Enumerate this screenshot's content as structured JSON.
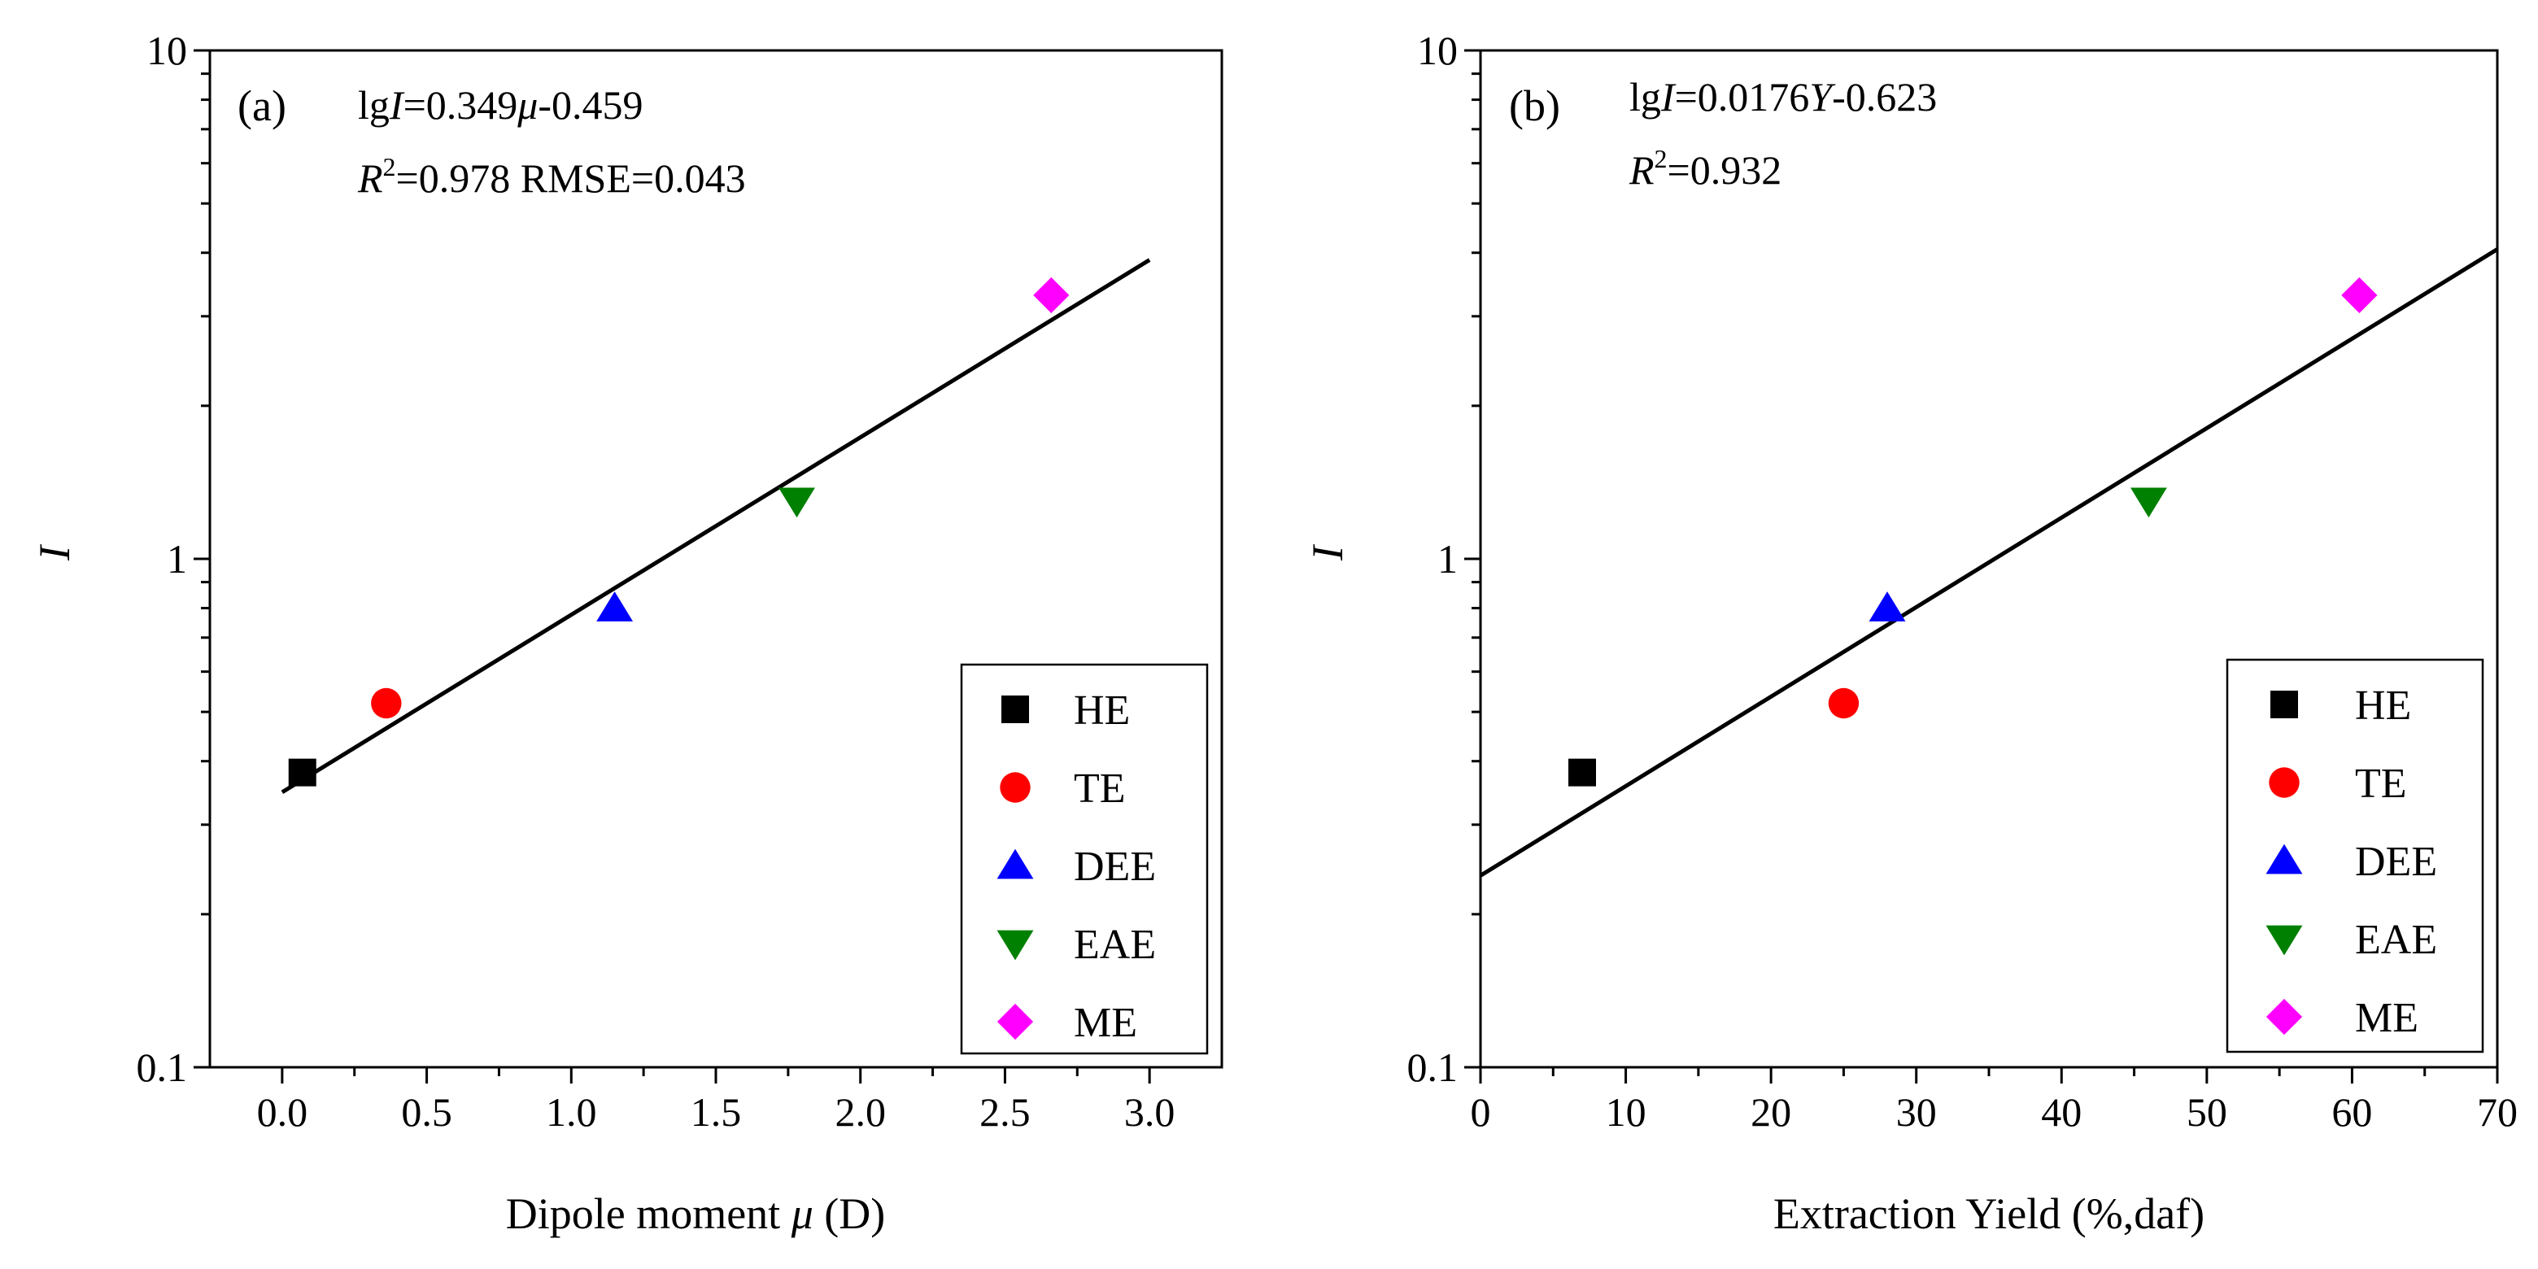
{
  "chart_data": [
    {
      "type": "scatter",
      "panel": "(a)",
      "xlabel": "Dipole moment μ (D)",
      "xlabel_text": "Dipole moment ",
      "xlabel_symbol": "μ",
      "xlabel_unit": " (D)",
      "ylabel": "I",
      "yscale": "log",
      "xlim": [
        -0.25,
        3.25
      ],
      "ylim": [
        0.1,
        10
      ],
      "xticks": [
        0.0,
        0.5,
        1.0,
        1.5,
        2.0,
        2.5,
        3.0
      ],
      "xtick_labels": [
        "0.0",
        "0.5",
        "1.0",
        "1.5",
        "2.0",
        "2.5",
        "3.0"
      ],
      "yticks": [
        0.1,
        1,
        10
      ],
      "ytick_labels": [
        "0.1",
        "1",
        "10"
      ],
      "equation": {
        "lg": "lg",
        "var_y": "I",
        "eq1": "=0.349",
        "var_x": "μ",
        "eq2": "-0.459",
        "r": "R",
        "sq": "2",
        "stats": "=0.978  RMSE=0.043"
      },
      "fit": {
        "slope": 0.349,
        "intercept": -0.459,
        "x_range": [
          0.0,
          3.0
        ]
      },
      "series": [
        {
          "name": "HE",
          "x": 0.07,
          "y": 0.38,
          "marker": "square",
          "color": "#000000"
        },
        {
          "name": "TE",
          "x": 0.36,
          "y": 0.52,
          "marker": "circle",
          "color": "#ff0000"
        },
        {
          "name": "DEE",
          "x": 1.15,
          "y": 0.8,
          "marker": "triangle-up",
          "color": "#0000ff"
        },
        {
          "name": "EAE",
          "x": 1.78,
          "y": 1.3,
          "marker": "triangle-down",
          "color": "#008000"
        },
        {
          "name": "ME",
          "x": 2.66,
          "y": 3.3,
          "marker": "diamond",
          "color": "#ff00ff"
        }
      ]
    },
    {
      "type": "scatter",
      "panel": "(b)",
      "xlabel": "Extraction Yield (%,daf)",
      "ylabel": "I",
      "yscale": "log",
      "xlim": [
        0,
        70
      ],
      "ylim": [
        0.1,
        10
      ],
      "xticks": [
        0,
        10,
        20,
        30,
        40,
        50,
        60,
        70
      ],
      "xtick_labels": [
        "0",
        "10",
        "20",
        "30",
        "40",
        "50",
        "60",
        "70"
      ],
      "yticks": [
        0.1,
        1,
        10
      ],
      "ytick_labels": [
        "0.1",
        "1",
        "10"
      ],
      "equation": {
        "lg": "lg",
        "var_y": "I",
        "eq1": "=0.0176",
        "var_x": "Y",
        "eq2": "-0.623",
        "r": "R",
        "sq": "2",
        "stats": "=0.932"
      },
      "fit": {
        "slope": 0.0176,
        "intercept": -0.623,
        "x_range": [
          0,
          70
        ]
      },
      "series": [
        {
          "name": "HE",
          "x": 7.0,
          "y": 0.38,
          "marker": "square",
          "color": "#000000"
        },
        {
          "name": "TE",
          "x": 25.0,
          "y": 0.52,
          "marker": "circle",
          "color": "#ff0000"
        },
        {
          "name": "DEE",
          "x": 28.0,
          "y": 0.8,
          "marker": "triangle-up",
          "color": "#0000ff"
        },
        {
          "name": "EAE",
          "x": 46.0,
          "y": 1.3,
          "marker": "triangle-down",
          "color": "#008000"
        },
        {
          "name": "ME",
          "x": 60.5,
          "y": 3.3,
          "marker": "diamond",
          "color": "#ff00ff"
        }
      ]
    }
  ]
}
